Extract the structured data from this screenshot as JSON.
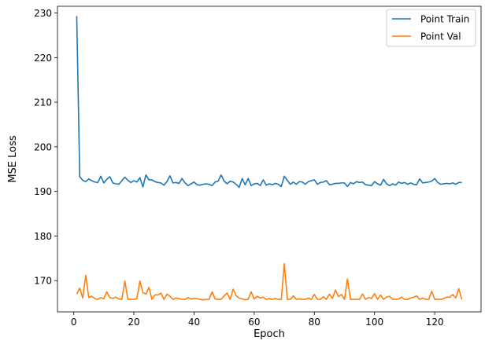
{
  "chart_data": {
    "type": "line",
    "title": "",
    "xlabel": "Epoch",
    "ylabel": "MSE Loss",
    "xlim": [
      -5.4,
      135.4
    ],
    "ylim": [
      163.0,
      231.5
    ],
    "x_ticks": [
      0,
      20,
      40,
      60,
      80,
      100,
      120
    ],
    "y_ticks": [
      170,
      180,
      190,
      200,
      210,
      220,
      230
    ],
    "grid": false,
    "legend_position": "top-right",
    "x": [
      1,
      2,
      3,
      4,
      5,
      6,
      7,
      8,
      9,
      10,
      11,
      12,
      13,
      14,
      15,
      16,
      17,
      18,
      19,
      20,
      21,
      22,
      23,
      24,
      25,
      26,
      27,
      28,
      29,
      30,
      31,
      32,
      33,
      34,
      35,
      36,
      37,
      38,
      39,
      40,
      41,
      42,
      43,
      44,
      45,
      46,
      47,
      48,
      49,
      50,
      51,
      52,
      53,
      54,
      55,
      56,
      57,
      58,
      59,
      60,
      61,
      62,
      63,
      64,
      65,
      66,
      67,
      68,
      69,
      70,
      71,
      72,
      73,
      74,
      75,
      76,
      77,
      78,
      79,
      80,
      81,
      82,
      83,
      84,
      85,
      86,
      87,
      88,
      89,
      90,
      91,
      92,
      93,
      94,
      95,
      96,
      97,
      98,
      99,
      100,
      101,
      102,
      103,
      104,
      105,
      106,
      107,
      108,
      109,
      110,
      111,
      112,
      113,
      114,
      115,
      116,
      117,
      118,
      119,
      120,
      121,
      122,
      123,
      124,
      125,
      126,
      127,
      128,
      129
    ],
    "series": [
      {
        "name": "Point Train",
        "color": "#1f77b4",
        "values": [
          229.3,
          193.3,
          192.5,
          192.2,
          192.8,
          192.4,
          192.1,
          192.0,
          193.4,
          191.9,
          192.7,
          193.3,
          191.9,
          191.7,
          191.6,
          192.4,
          193.2,
          192.5,
          192.0,
          192.4,
          192.1,
          193.1,
          191.0,
          193.7,
          192.6,
          192.6,
          192.2,
          192.0,
          191.9,
          191.4,
          192.2,
          193.5,
          191.9,
          192.0,
          191.8,
          192.9,
          191.9,
          191.3,
          191.7,
          192.1,
          191.5,
          191.4,
          191.6,
          191.7,
          191.6,
          191.3,
          192.1,
          192.3,
          193.7,
          192.3,
          191.7,
          192.3,
          192.1,
          191.6,
          190.9,
          192.9,
          191.5,
          192.9,
          191.3,
          191.7,
          191.8,
          191.3,
          192.6,
          191.4,
          191.7,
          191.5,
          191.8,
          191.6,
          191.1,
          193.4,
          192.5,
          191.6,
          192.1,
          191.6,
          192.2,
          192.1,
          191.6,
          192.2,
          192.4,
          192.6,
          191.6,
          192.0,
          192.1,
          192.4,
          191.5,
          191.6,
          191.8,
          191.8,
          191.9,
          191.9,
          191.1,
          192.0,
          191.7,
          192.2,
          192.0,
          192.1,
          191.5,
          191.4,
          191.3,
          192.2,
          191.7,
          191.4,
          192.7,
          191.7,
          191.3,
          191.7,
          191.4,
          192.1,
          191.8,
          192.0,
          191.6,
          191.9,
          191.6,
          191.5,
          192.8,
          191.9,
          192.0,
          192.1,
          192.3,
          192.9,
          192.0,
          191.6,
          191.7,
          191.8,
          191.7,
          191.9,
          191.6,
          192.0,
          192.0
        ]
      },
      {
        "name": "Point Val",
        "color": "#ff7f0e",
        "values": [
          167.0,
          168.3,
          166.1,
          171.2,
          166.2,
          166.5,
          166.0,
          165.8,
          166.2,
          165.9,
          167.5,
          166.2,
          166.0,
          166.3,
          165.9,
          165.8,
          169.9,
          165.8,
          165.8,
          165.8,
          166.0,
          169.9,
          167.3,
          167.0,
          168.5,
          165.8,
          166.8,
          166.8,
          167.2,
          165.8,
          167.0,
          166.5,
          165.8,
          166.1,
          166.0,
          165.8,
          165.8,
          166.2,
          165.9,
          166.0,
          166.0,
          165.8,
          165.7,
          165.8,
          165.8,
          167.5,
          165.9,
          165.8,
          165.8,
          166.6,
          167.2,
          165.8,
          168.1,
          166.6,
          166.1,
          165.9,
          165.7,
          165.8,
          167.5,
          165.9,
          166.5,
          166.1,
          166.3,
          165.8,
          166.0,
          165.8,
          166.0,
          165.8,
          165.8,
          173.8,
          165.8,
          165.8,
          166.6,
          165.8,
          165.9,
          165.8,
          165.8,
          166.1,
          165.8,
          166.9,
          165.8,
          165.8,
          166.4,
          165.8,
          167.0,
          166.0,
          167.9,
          166.4,
          166.9,
          165.8,
          170.4,
          165.8,
          165.8,
          165.8,
          165.8,
          167.0,
          165.8,
          166.2,
          166.0,
          167.1,
          165.8,
          166.8,
          165.8,
          166.3,
          166.5,
          165.8,
          165.8,
          165.9,
          166.3,
          165.8,
          165.8,
          166.1,
          166.3,
          166.6,
          165.8,
          166.1,
          165.8,
          165.8,
          167.6,
          165.8,
          165.8,
          165.8,
          166.0,
          166.3,
          166.3,
          166.9,
          166.1,
          168.2,
          165.8
        ]
      }
    ]
  }
}
